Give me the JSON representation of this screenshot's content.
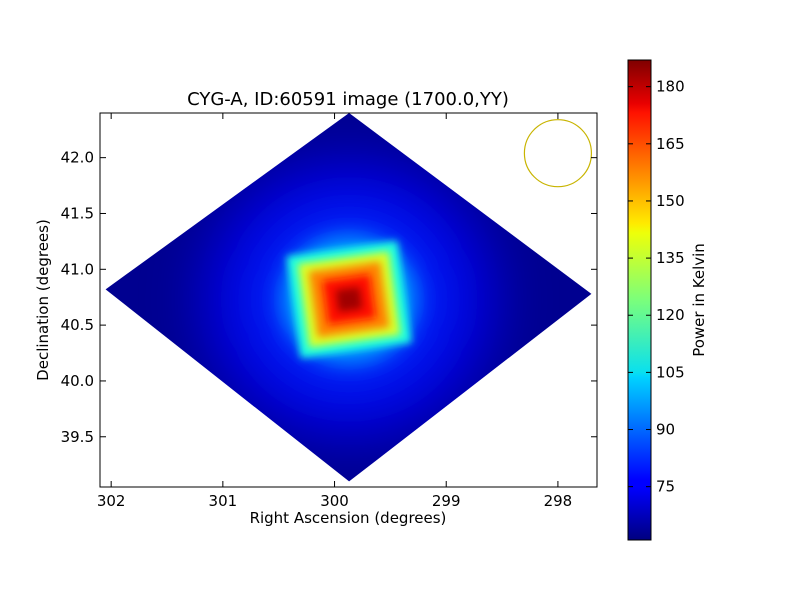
{
  "chart_data": {
    "type": "heatmap",
    "title": "CYG-A, ID:60591 image (1700.0,YY)",
    "xlabel": "Right Ascension (degrees)",
    "ylabel": "Declination (degrees)",
    "xlim": [
      302.1,
      297.65
    ],
    "ylim": [
      39.05,
      42.4
    ],
    "x_ticks": [
      302,
      301,
      300,
      299,
      298
    ],
    "x_tick_labels": [
      "302",
      "301",
      "300",
      "299",
      "298"
    ],
    "y_ticks": [
      39.5,
      40.0,
      40.5,
      41.0,
      41.5,
      42.0
    ],
    "y_tick_labels": [
      "39.5",
      "40.0",
      "40.5",
      "41.0",
      "41.5",
      "42.0"
    ],
    "colormap": "jet",
    "colorbar": {
      "label": "Power in Kelvin",
      "min": 61,
      "max": 187,
      "ticks": [
        75,
        90,
        105,
        120,
        135,
        150,
        165,
        180
      ],
      "tick_labels": [
        "75",
        "90",
        "105",
        "120",
        "135",
        "150",
        "165",
        "180"
      ]
    },
    "source": {
      "ra": 299.87,
      "dec": 40.73,
      "peak": 187
    },
    "background_level": 63,
    "footprint": "diamond",
    "footprint_vertices_deg": [
      [
        299.87,
        42.4
      ],
      [
        297.7,
        40.78
      ],
      [
        299.87,
        39.1
      ],
      [
        302.05,
        40.82
      ]
    ],
    "beam": {
      "ra": 298.0,
      "dec": 42.04,
      "radius_deg": 0.3,
      "color": "#c8b400"
    },
    "grid": false
  }
}
